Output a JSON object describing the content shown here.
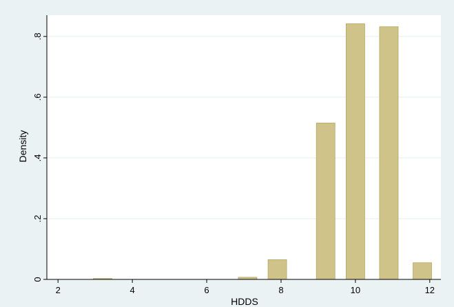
{
  "chart_data": {
    "type": "bar",
    "title": "",
    "xlabel": "HDDS",
    "ylabel": "Density",
    "xlim": [
      1.7,
      12.3
    ],
    "ylim": [
      0,
      0.87
    ],
    "x_ticks": [
      2,
      4,
      6,
      8,
      10,
      12
    ],
    "x_tick_labels": [
      "2",
      "4",
      "6",
      "8",
      "10",
      "12"
    ],
    "y_ticks": [
      0,
      0.2,
      0.4,
      0.6,
      0.8
    ],
    "y_tick_labels": [
      "0",
      ".2",
      ".4",
      ".6",
      ".8"
    ],
    "grid": true,
    "bar_width": 0.5,
    "bar_color": "#cfc389",
    "bar_edge_color": "#b2a864",
    "plot_background": "#ffffff",
    "page_background": "#eaf2f3",
    "bars": [
      {
        "x": 3.2,
        "value": 0.003
      },
      {
        "x": 7.1,
        "value": 0.007
      },
      {
        "x": 7.9,
        "value": 0.065
      },
      {
        "x": 9.2,
        "value": 0.515
      },
      {
        "x": 10.0,
        "value": 0.842
      },
      {
        "x": 10.9,
        "value": 0.832
      },
      {
        "x": 11.8,
        "value": 0.055
      }
    ]
  }
}
